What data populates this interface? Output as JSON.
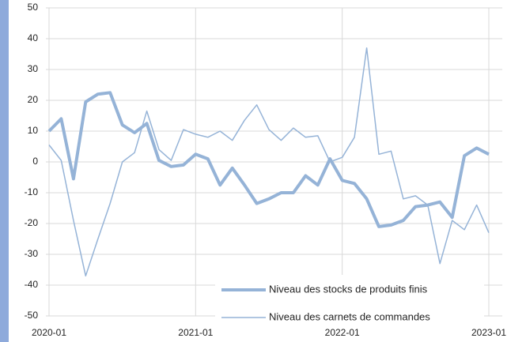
{
  "chart_data": {
    "type": "line",
    "categories": [
      "2020-01",
      null,
      null,
      null,
      null,
      null,
      null,
      null,
      null,
      null,
      null,
      null,
      "2021-01",
      null,
      null,
      null,
      null,
      null,
      null,
      null,
      null,
      null,
      null,
      null,
      "2022-01",
      null,
      null,
      null,
      null,
      null,
      null,
      null,
      null,
      null,
      null,
      null,
      "2023-01"
    ],
    "series": [
      {
        "name": "Niveau des stocks de produits finis",
        "color": "#95b3d7",
        "width": 4,
        "values": [
          10,
          14,
          -5.5,
          19.5,
          22,
          22.5,
          12,
          9.5,
          12.5,
          0.5,
          -1.5,
          -1,
          2.5,
          1,
          -7.5,
          -2,
          -7.5,
          -13.5,
          -12,
          -10,
          -10,
          -4.5,
          -7.5,
          1,
          -6,
          -7,
          -12,
          -21,
          -20.5,
          -19,
          -14.5,
          -14,
          -13,
          -18,
          2,
          4.5,
          2.5
        ]
      },
      {
        "name": "Niveau des carnets de commandes",
        "color": "#95b3d7",
        "width": 1.5,
        "values": [
          5.5,
          0.5,
          -19,
          -37,
          -25,
          -13.5,
          0,
          3,
          16.5,
          4,
          0.5,
          10.5,
          9,
          8,
          10,
          7,
          13.5,
          18.5,
          10.5,
          7,
          11,
          8,
          8.5,
          0,
          1.5,
          8,
          37,
          2.5,
          3.5,
          -12,
          -11,
          -14,
          -33,
          -19,
          -22,
          -14,
          -23
        ]
      }
    ],
    "ylim": [
      -50,
      50
    ],
    "yticks": [
      -50,
      -40,
      -30,
      -20,
      -10,
      0,
      10,
      20,
      30,
      40,
      50
    ],
    "grid": true
  }
}
